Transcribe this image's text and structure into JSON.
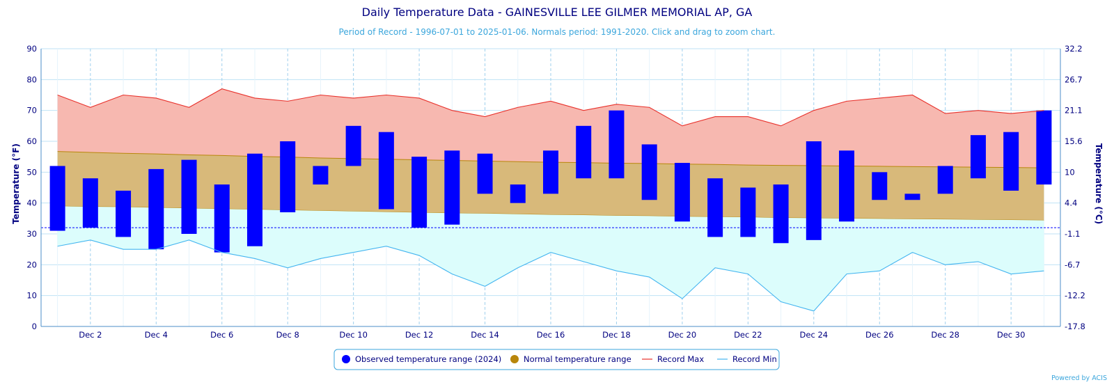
{
  "title": "Daily Temperature Data - GAINESVILLE LEE GILMER MEMORIAL AP, GA",
  "subtitle": "Period of Record - 1996-07-01 to 2025-01-06. Normals period: 1991-2020. Click and drag to zoom chart.",
  "credit": "Powered by ACIS",
  "colors": {
    "title": "#000080",
    "subtitle": "#3ba6dc",
    "observed": "#0000ff",
    "normal_fill": "#d8b97a",
    "normal_line": "#b8860b",
    "record_max_fill": "#f7b8b0",
    "record_max_line": "#e8302a",
    "record_min_fill": "#dcfdfc",
    "record_min_line": "#44b5f0",
    "grid": "#bfe2f5",
    "freezing_line": "#0000ff"
  },
  "chart_data": {
    "type": "bar",
    "title": "Daily Temperature Data - GAINESVILLE LEE GILMER MEMORIAL AP, GA",
    "subtitle": "Period of Record - 1996-07-01 to 2025-01-06. Normals period: 1991-2020. Click and drag to zoom chart.",
    "ylabel": "Temperature (°F)",
    "ylabel_right": "Temperature (°C)",
    "ylim": [
      0,
      90
    ],
    "yticks": [
      0,
      10,
      20,
      30,
      40,
      50,
      60,
      70,
      80,
      90
    ],
    "yticks_right": [
      "-17.8",
      "-12.2",
      "-6.7",
      "-1.1",
      "4.4",
      "10",
      "15.6",
      "21.1",
      "26.7",
      "32.2"
    ],
    "xlim": [
      0.5,
      31.5
    ],
    "xtick_days": [
      2,
      4,
      6,
      8,
      10,
      12,
      14,
      16,
      18,
      20,
      22,
      24,
      26,
      28,
      30
    ],
    "xtick_labels": [
      "Dec 2",
      "Dec 4",
      "Dec 6",
      "Dec 8",
      "Dec 10",
      "Dec 12",
      "Dec 14",
      "Dec 16",
      "Dec 18",
      "Dec 20",
      "Dec 22",
      "Dec 24",
      "Dec 26",
      "Dec 28",
      "Dec 30"
    ],
    "grid": true,
    "legend_position": "bottom-center",
    "freezing_line": 32,
    "days": [
      1,
      2,
      3,
      4,
      5,
      6,
      7,
      8,
      9,
      10,
      11,
      12,
      13,
      14,
      15,
      16,
      17,
      18,
      19,
      20,
      21,
      22,
      23,
      24,
      25,
      26,
      27,
      28,
      29,
      30,
      31
    ],
    "series": [
      {
        "name": "Observed temperature range (2024)",
        "kind": "range-bar",
        "low": [
          31,
          32,
          29,
          25,
          30,
          24,
          26,
          37,
          46,
          52,
          38,
          32,
          33,
          43,
          40,
          43,
          48,
          48,
          41,
          34,
          29,
          29,
          27,
          28,
          34,
          41,
          41,
          43,
          48,
          44,
          46
        ],
        "high": [
          52,
          48,
          44,
          51,
          54,
          46,
          56,
          60,
          52,
          65,
          63,
          55,
          57,
          56,
          46,
          57,
          65,
          70,
          59,
          53,
          48,
          45,
          46,
          60,
          57,
          50,
          43,
          52,
          62,
          63,
          70
        ]
      },
      {
        "name": "Normal temperature range",
        "kind": "band",
        "low": [
          39,
          38.8,
          38.7,
          38.5,
          38.3,
          38.1,
          37.9,
          37.7,
          37.5,
          37.3,
          37.1,
          36.9,
          36.7,
          36.6,
          36.4,
          36.2,
          36.1,
          35.9,
          35.8,
          35.6,
          35.5,
          35.4,
          35.2,
          35.1,
          35,
          34.9,
          34.8,
          34.7,
          34.6,
          34.5,
          34.4
        ],
        "high": [
          56.7,
          56.4,
          56.1,
          55.9,
          55.6,
          55.4,
          55.1,
          54.9,
          54.6,
          54.4,
          54.2,
          54,
          53.8,
          53.6,
          53.4,
          53.2,
          53.1,
          52.9,
          52.8,
          52.6,
          52.5,
          52.3,
          52.2,
          52.1,
          52,
          51.9,
          51.8,
          51.7,
          51.6,
          51.5,
          51.4
        ]
      },
      {
        "name": "Record Max",
        "kind": "line",
        "values": [
          75,
          71,
          75,
          74,
          71,
          77,
          74,
          73,
          75,
          74,
          75,
          74,
          70,
          68,
          71,
          73,
          70,
          72,
          71,
          65,
          68,
          68,
          65,
          70,
          73,
          74,
          75,
          69,
          70,
          69,
          70
        ]
      },
      {
        "name": "Record Min",
        "kind": "line",
        "values": [
          26,
          28,
          25,
          25,
          28,
          24,
          22,
          19,
          22,
          24,
          26,
          23,
          17,
          13,
          19,
          24,
          21,
          18,
          16,
          9,
          19,
          17,
          8,
          5,
          17,
          18,
          24,
          20,
          21,
          17,
          18
        ]
      }
    ]
  }
}
